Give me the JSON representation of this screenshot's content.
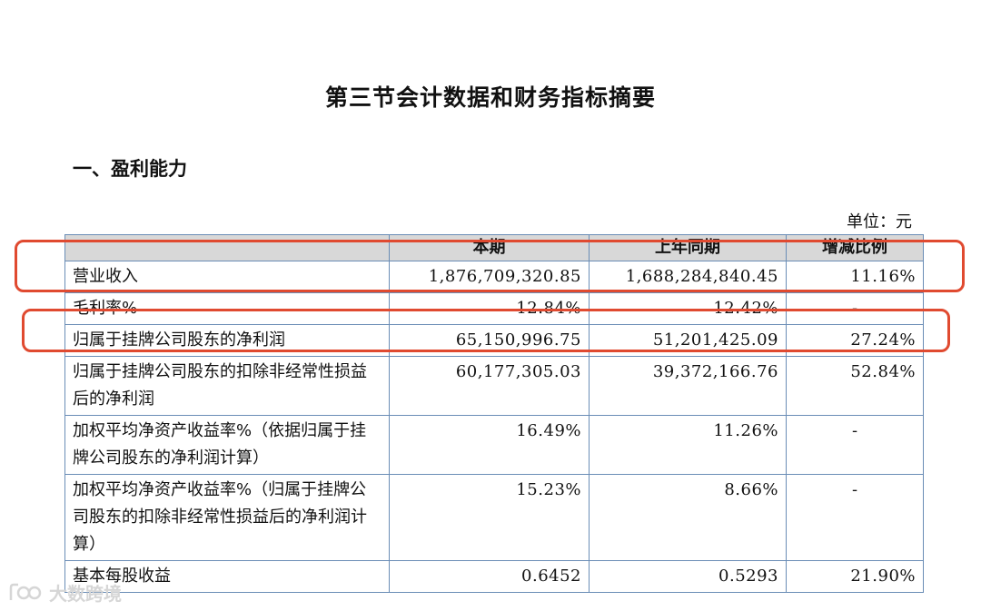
{
  "title": "第三节会计数据和财务指标摘要",
  "section": "一、盈利能力",
  "unit": "单位：元",
  "table": {
    "headers": [
      "",
      "本期",
      "上年同期",
      "增减比例"
    ],
    "rows": [
      {
        "label": "营业收入",
        "current": "1,876,709,320.85",
        "prior": "1,688,284,840.45",
        "change": "11.16%"
      },
      {
        "label": "毛利率%",
        "current": "12.84%",
        "prior": "12.42%",
        "change": "-"
      },
      {
        "label": "归属于挂牌公司股东的净利润",
        "current": "65,150,996.75",
        "prior": "51,201,425.09",
        "change": "27.24%"
      },
      {
        "label": "归属于挂牌公司股东的扣除非经常性损益后的净利润",
        "current": "60,177,305.03",
        "prior": "39,372,166.76",
        "change": "52.84%"
      },
      {
        "label": "加权平均净资产收益率%（依据归属于挂牌公司股东的净利润计算）",
        "current": "16.49%",
        "prior": "11.26%",
        "change": "-"
      },
      {
        "label": "加权平均净资产收益率%（归属于挂牌公司股东的扣除非经常性损益后的净利润计算）",
        "current": "15.23%",
        "prior": "8.66%",
        "change": "-"
      },
      {
        "label": "基本每股收益",
        "current": "0.6452",
        "prior": "0.5293",
        "change": "21.90%"
      }
    ]
  },
  "highlight_color": "#e04a30",
  "watermark": {
    "text": "大数跨境",
    "icon": "bubble-logo-icon"
  }
}
